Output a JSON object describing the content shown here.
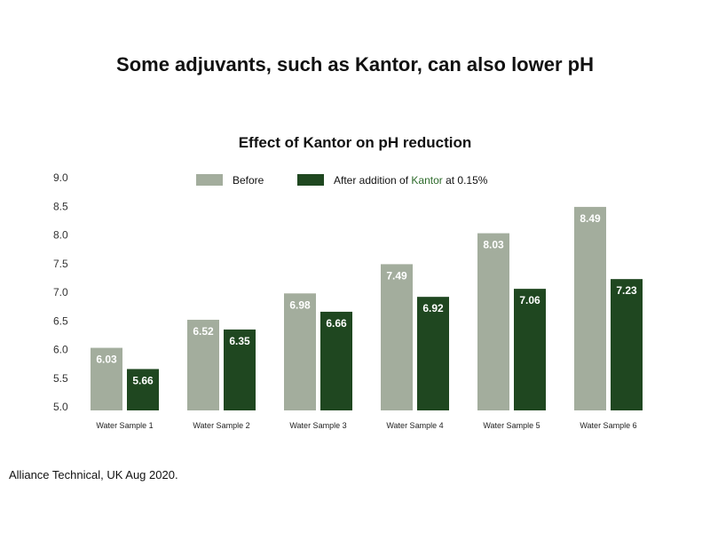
{
  "headline": "Some adjuvants, such as Kantor, can also lower pH",
  "source": "Alliance Technical, UK Aug 2020.",
  "colors": {
    "before": "#a3ad9d",
    "after": "#1f4720",
    "brand": "#2d6a2a"
  },
  "chart_data": {
    "type": "bar",
    "title": "Effect of Kantor on pH reduction",
    "xlabel": "",
    "ylabel": "",
    "categories": [
      "Water Sample 1",
      "Water Sample 2",
      "Water Sample 3",
      "Water Sample 4",
      "Water Sample 5",
      "Water Sample 6"
    ],
    "series": [
      {
        "name": "Before",
        "values": [
          6.03,
          6.52,
          6.98,
          7.49,
          8.03,
          8.49
        ],
        "labels": [
          "6.03",
          "6.52",
          "6.98",
          "7.49",
          "8.03",
          "8.49"
        ]
      },
      {
        "name": "After addition of Kantor at 0.15%",
        "values": [
          5.66,
          6.35,
          6.66,
          6.92,
          7.06,
          7.23
        ],
        "labels": [
          "5.66",
          "6.35",
          "6.66",
          "6.92",
          "7.06",
          "7.23"
        ]
      }
    ],
    "legend": {
      "before": "Before",
      "after_prefix": "After addition of ",
      "after_brand": "Kantor",
      "after_suffix": " at 0.15%",
      "position": "top"
    },
    "ylim": [
      5.0,
      9.0
    ],
    "yticks": [
      "5.0",
      "5.5",
      "6.0",
      "6.5",
      "7.0",
      "7.5",
      "8.0",
      "8.5",
      "9.0"
    ],
    "grid": false
  }
}
